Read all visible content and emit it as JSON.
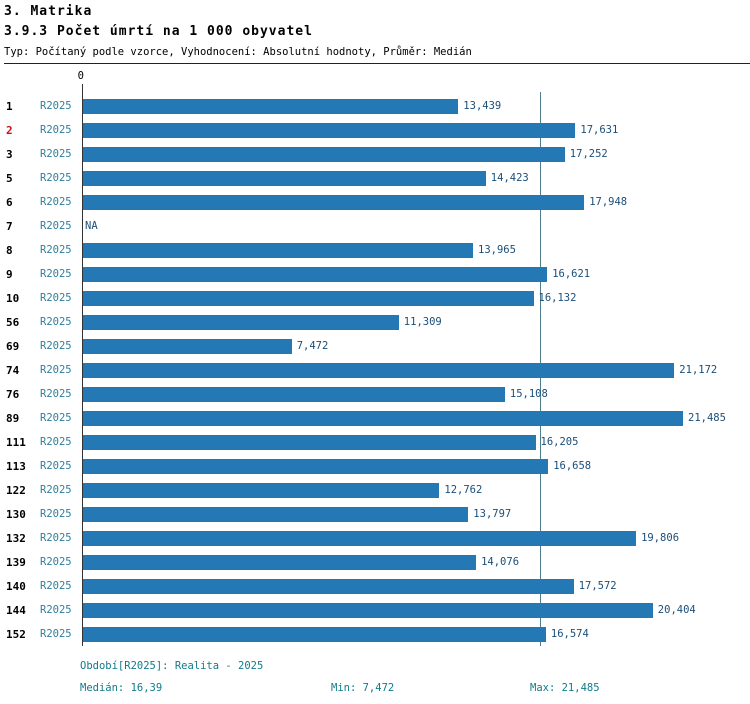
{
  "header": {
    "title": "3. Matrika",
    "subtitle": "3.9.3 Počet úmrtí na 1 000 obyvatel",
    "meta": "Typ: Počítaný podle vzorce, Vyhodnocení: Absolutní hodnoty, Průměr: Medián"
  },
  "colors": {
    "bar": "#2478b4",
    "median_line": "#4e7d8e",
    "period_label": "#2e7f9e",
    "value_label": "#1b4e79",
    "footer_text": "#117a8b",
    "emphasис_row_id": "#cc1111"
  },
  "chart_data": {
    "type": "bar",
    "orientation": "horizontal",
    "title": "3.9.3 Počet úmrtí na 1 000 obyvatel",
    "axis_zero_label": "0",
    "x_min": 0,
    "x_max": 21.485,
    "median_value": 16.39,
    "na_label": "NA",
    "series_period": "R2025",
    "rows": [
      {
        "id": "1",
        "period": "R2025",
        "value": 13.439,
        "label": "13,439",
        "emphasis": false
      },
      {
        "id": "2",
        "period": "R2025",
        "value": 17.631,
        "label": "17,631",
        "emphasis": true
      },
      {
        "id": "3",
        "period": "R2025",
        "value": 17.252,
        "label": "17,252",
        "emphasis": false
      },
      {
        "id": "5",
        "period": "R2025",
        "value": 14.423,
        "label": "14,423",
        "emphasis": false
      },
      {
        "id": "6",
        "period": "R2025",
        "value": 17.948,
        "label": "17,948",
        "emphasis": false
      },
      {
        "id": "7",
        "period": "R2025",
        "value": null,
        "label": "NA",
        "emphasis": false
      },
      {
        "id": "8",
        "period": "R2025",
        "value": 13.965,
        "label": "13,965",
        "emphasis": false
      },
      {
        "id": "9",
        "period": "R2025",
        "value": 16.621,
        "label": "16,621",
        "emphasis": false
      },
      {
        "id": "10",
        "period": "R2025",
        "value": 16.132,
        "label": "16,132",
        "emphasis": false
      },
      {
        "id": "56",
        "period": "R2025",
        "value": 11.309,
        "label": "11,309",
        "emphasis": false
      },
      {
        "id": "69",
        "period": "R2025",
        "value": 7.472,
        "label": "7,472",
        "emphasis": false
      },
      {
        "id": "74",
        "period": "R2025",
        "value": 21.172,
        "label": "21,172",
        "emphasis": false
      },
      {
        "id": "76",
        "period": "R2025",
        "value": 15.108,
        "label": "15,108",
        "emphasis": false
      },
      {
        "id": "89",
        "period": "R2025",
        "value": 21.485,
        "label": "21,485",
        "emphasis": false
      },
      {
        "id": "111",
        "period": "R2025",
        "value": 16.205,
        "label": "16,205",
        "emphasis": false
      },
      {
        "id": "113",
        "period": "R2025",
        "value": 16.658,
        "label": "16,658",
        "emphasis": false
      },
      {
        "id": "122",
        "period": "R2025",
        "value": 12.762,
        "label": "12,762",
        "emphasis": false
      },
      {
        "id": "130",
        "period": "R2025",
        "value": 13.797,
        "label": "13,797",
        "emphasis": false
      },
      {
        "id": "132",
        "period": "R2025",
        "value": 19.806,
        "label": "19,806",
        "emphasis": false
      },
      {
        "id": "139",
        "period": "R2025",
        "value": 14.076,
        "label": "14,076",
        "emphasis": false
      },
      {
        "id": "140",
        "period": "R2025",
        "value": 17.572,
        "label": "17,572",
        "emphasis": false
      },
      {
        "id": "144",
        "period": "R2025",
        "value": 20.404,
        "label": "20,404",
        "emphasis": false
      },
      {
        "id": "152",
        "period": "R2025",
        "value": 16.574,
        "label": "16,574",
        "emphasis": false
      }
    ]
  },
  "footer": {
    "period_line": "Období[R2025]: Realita - 2025",
    "median": "Medián: 16,39",
    "min": "Min: 7,472",
    "max": "Max: 21,485"
  }
}
